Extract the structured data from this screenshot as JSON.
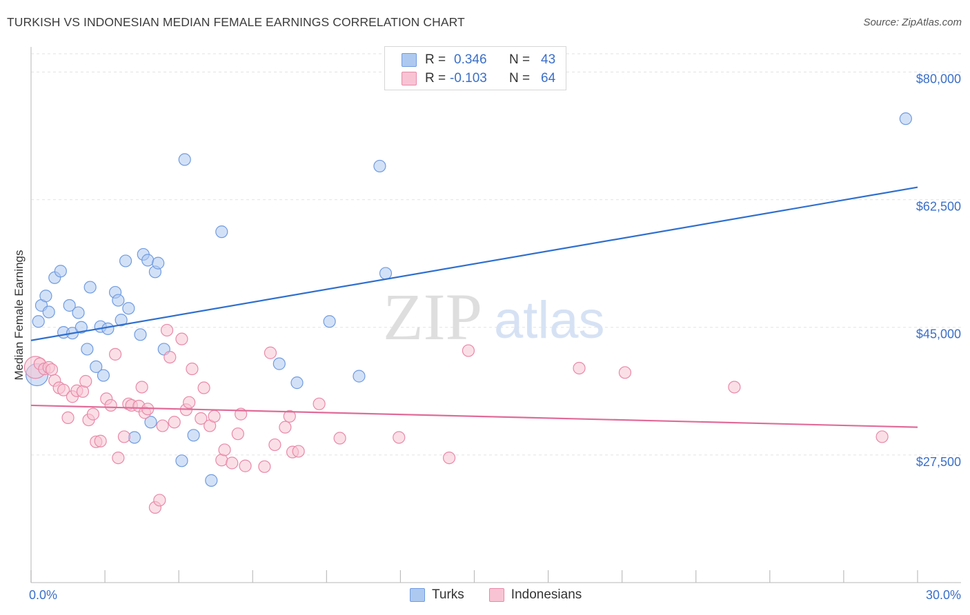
{
  "title": "TURKISH VS INDONESIAN MEDIAN FEMALE EARNINGS CORRELATION CHART",
  "source": "Source: ZipAtlas.com",
  "legend": {
    "rows": [
      {
        "r_label": "R =",
        "r_value": "0.346",
        "n_label": "N =",
        "n_value": "43",
        "color": "#aec9f0",
        "stroke": "#6f9be0"
      },
      {
        "r_label": "R =",
        "r_value": "-0.103",
        "n_label": "N =",
        "n_value": "64",
        "color": "#f8c4d4",
        "stroke": "#e889a8"
      }
    ]
  },
  "bottom_legend": {
    "items": [
      {
        "label": "Turks",
        "color": "#aec9f0",
        "stroke": "#6f9be0"
      },
      {
        "label": "Indonesians",
        "color": "#f8c4d4",
        "stroke": "#e889a8"
      }
    ]
  },
  "chart_data": {
    "type": "scatter",
    "title": "TURKISH VS INDONESIAN MEDIAN FEMALE EARNINGS CORRELATION CHART",
    "xlabel": "",
    "ylabel": "Median Female Earnings",
    "xlim": [
      0,
      30
    ],
    "ylim": [
      10000,
      82500
    ],
    "x_ticks": [
      {
        "value": 0,
        "label": "0.0%"
      },
      {
        "value": 30,
        "label": "30.0%"
      }
    ],
    "y_ticks": [
      {
        "value": 27500,
        "label": "$27,500"
      },
      {
        "value": 45000,
        "label": "$45,000"
      },
      {
        "value": 62500,
        "label": "$62,500"
      },
      {
        "value": 80000,
        "label": "$80,000"
      }
    ],
    "grid": true,
    "legend_position": "top-center",
    "watermark": "ZIPatlas",
    "series": [
      {
        "name": "Turks",
        "color": "#aec9f0",
        "stroke": "#6f9be0",
        "line_color": "#2f6fce",
        "trend": {
          "x": [
            0,
            30
          ],
          "y": [
            43200,
            64200
          ]
        },
        "points": [
          {
            "x": 0.2,
            "y": 38500,
            "big": true
          },
          {
            "x": 0.25,
            "y": 45800
          },
          {
            "x": 0.35,
            "y": 48000
          },
          {
            "x": 0.5,
            "y": 49300
          },
          {
            "x": 0.6,
            "y": 47100
          },
          {
            "x": 0.8,
            "y": 51800
          },
          {
            "x": 1.0,
            "y": 52700
          },
          {
            "x": 1.1,
            "y": 44300
          },
          {
            "x": 1.3,
            "y": 48000
          },
          {
            "x": 1.4,
            "y": 44200
          },
          {
            "x": 1.6,
            "y": 47000
          },
          {
            "x": 1.7,
            "y": 45000
          },
          {
            "x": 1.9,
            "y": 42000
          },
          {
            "x": 2.0,
            "y": 50500
          },
          {
            "x": 2.2,
            "y": 39600
          },
          {
            "x": 2.35,
            "y": 45100
          },
          {
            "x": 2.45,
            "y": 38400
          },
          {
            "x": 2.6,
            "y": 44800
          },
          {
            "x": 2.85,
            "y": 49800
          },
          {
            "x": 2.95,
            "y": 48700
          },
          {
            "x": 3.05,
            "y": 46000
          },
          {
            "x": 3.2,
            "y": 54100
          },
          {
            "x": 3.3,
            "y": 47600
          },
          {
            "x": 3.5,
            "y": 29900
          },
          {
            "x": 3.7,
            "y": 44000
          },
          {
            "x": 3.8,
            "y": 55000
          },
          {
            "x": 3.95,
            "y": 54200
          },
          {
            "x": 4.05,
            "y": 32000
          },
          {
            "x": 4.2,
            "y": 52600
          },
          {
            "x": 4.3,
            "y": 53800
          },
          {
            "x": 4.5,
            "y": 42000
          },
          {
            "x": 5.1,
            "y": 26700
          },
          {
            "x": 5.2,
            "y": 68000
          },
          {
            "x": 5.5,
            "y": 30200
          },
          {
            "x": 6.1,
            "y": 24000
          },
          {
            "x": 6.45,
            "y": 58100
          },
          {
            "x": 8.4,
            "y": 40000
          },
          {
            "x": 9.0,
            "y": 37400
          },
          {
            "x": 10.1,
            "y": 45800
          },
          {
            "x": 11.1,
            "y": 38300
          },
          {
            "x": 11.8,
            "y": 67100
          },
          {
            "x": 12.0,
            "y": 52400
          },
          {
            "x": 29.6,
            "y": 73600
          }
        ]
      },
      {
        "name": "Indonesians",
        "color": "#f8c4d4",
        "stroke": "#e889a8",
        "line_color": "#e06b97",
        "trend": {
          "x": [
            0,
            30
          ],
          "y": [
            34300,
            31300
          ]
        },
        "points": [
          {
            "x": 0.15,
            "y": 39500,
            "big": true
          },
          {
            "x": 0.3,
            "y": 40000
          },
          {
            "x": 0.45,
            "y": 39300
          },
          {
            "x": 0.6,
            "y": 39500
          },
          {
            "x": 0.7,
            "y": 39200
          },
          {
            "x": 0.8,
            "y": 37700
          },
          {
            "x": 0.95,
            "y": 36700
          },
          {
            "x": 1.1,
            "y": 36400
          },
          {
            "x": 1.25,
            "y": 32600
          },
          {
            "x": 1.4,
            "y": 35500
          },
          {
            "x": 1.55,
            "y": 36300
          },
          {
            "x": 1.75,
            "y": 36200
          },
          {
            "x": 1.85,
            "y": 37600
          },
          {
            "x": 1.95,
            "y": 32300
          },
          {
            "x": 2.1,
            "y": 33100
          },
          {
            "x": 2.2,
            "y": 29300
          },
          {
            "x": 2.35,
            "y": 29400
          },
          {
            "x": 2.55,
            "y": 35200
          },
          {
            "x": 2.7,
            "y": 34300
          },
          {
            "x": 2.85,
            "y": 41300
          },
          {
            "x": 2.95,
            "y": 27100
          },
          {
            "x": 3.15,
            "y": 30000
          },
          {
            "x": 3.3,
            "y": 34500
          },
          {
            "x": 3.4,
            "y": 34300
          },
          {
            "x": 3.65,
            "y": 34200
          },
          {
            "x": 3.75,
            "y": 36800
          },
          {
            "x": 3.85,
            "y": 33300
          },
          {
            "x": 3.95,
            "y": 33800
          },
          {
            "x": 4.2,
            "y": 20300
          },
          {
            "x": 4.35,
            "y": 21300
          },
          {
            "x": 4.45,
            "y": 31500
          },
          {
            "x": 4.6,
            "y": 44600
          },
          {
            "x": 4.7,
            "y": 40900
          },
          {
            "x": 4.85,
            "y": 32000
          },
          {
            "x": 5.1,
            "y": 43400
          },
          {
            "x": 5.25,
            "y": 33700
          },
          {
            "x": 5.35,
            "y": 34700
          },
          {
            "x": 5.45,
            "y": 39300
          },
          {
            "x": 5.75,
            "y": 32500
          },
          {
            "x": 5.85,
            "y": 36700
          },
          {
            "x": 6.05,
            "y": 31500
          },
          {
            "x": 6.2,
            "y": 32800
          },
          {
            "x": 6.45,
            "y": 26800
          },
          {
            "x": 6.55,
            "y": 28200
          },
          {
            "x": 6.8,
            "y": 26400
          },
          {
            "x": 7.0,
            "y": 30400
          },
          {
            "x": 7.1,
            "y": 33100
          },
          {
            "x": 7.25,
            "y": 26000
          },
          {
            "x": 7.9,
            "y": 25900
          },
          {
            "x": 8.1,
            "y": 41500
          },
          {
            "x": 8.25,
            "y": 28900
          },
          {
            "x": 8.6,
            "y": 31300
          },
          {
            "x": 8.75,
            "y": 32800
          },
          {
            "x": 8.85,
            "y": 27900
          },
          {
            "x": 9.05,
            "y": 28000
          },
          {
            "x": 9.75,
            "y": 34500
          },
          {
            "x": 10.45,
            "y": 29800
          },
          {
            "x": 12.45,
            "y": 29900
          },
          {
            "x": 14.15,
            "y": 27100
          },
          {
            "x": 14.8,
            "y": 41800
          },
          {
            "x": 18.55,
            "y": 39400
          },
          {
            "x": 20.1,
            "y": 38800
          },
          {
            "x": 23.8,
            "y": 36800
          },
          {
            "x": 28.8,
            "y": 30000
          }
        ]
      }
    ]
  }
}
